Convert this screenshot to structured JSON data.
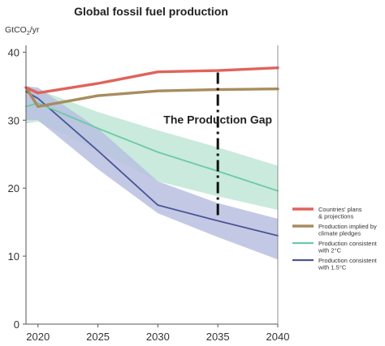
{
  "chart_data": {
    "type": "line",
    "title": "Global fossil fuel production",
    "ylabel_main": "GtCO",
    "ylabel_sub": "2",
    "ylabel_tail": "/yr",
    "xlabel": "",
    "xlim": [
      2019,
      2040
    ],
    "ylim": [
      0,
      41
    ],
    "x_ticks": [
      2020,
      2025,
      2030,
      2035,
      2040
    ],
    "y_ticks": [
      0,
      10,
      20,
      30,
      40
    ],
    "grid": false,
    "legend_position": "right",
    "series": [
      {
        "name": "Countries' plans & projections",
        "label_lines": [
          "Countries' plans",
          "& projections"
        ],
        "color": "#e0635c",
        "x": [
          2019,
          2020,
          2025,
          2030,
          2035,
          2040
        ],
        "y": [
          34.8,
          34.0,
          35.4,
          37.1,
          37.3,
          37.7
        ]
      },
      {
        "name": "Production implied by climate pledges",
        "label_lines": [
          "Production implied by",
          " climate pledges"
        ],
        "color": "#a88c5e",
        "x": [
          2019,
          2020,
          2025,
          2030,
          2035,
          2040
        ],
        "y": [
          34.8,
          32.0,
          33.6,
          34.3,
          34.5,
          34.6
        ]
      },
      {
        "name": "Production consistent with 2°C",
        "label_lines": [
          "Production consistent",
          "with 2°C"
        ],
        "color": "#6cc9a6",
        "band_color": "#bfe6d6",
        "x": [
          2019,
          2020,
          2025,
          2030,
          2035,
          2040
        ],
        "y": [
          32.0,
          32.5,
          28.8,
          25.3,
          22.5,
          19.6
        ],
        "band_upper": [
          34.8,
          34.5,
          31.2,
          28.5,
          26.0,
          23.3
        ],
        "band_lower": [
          29.5,
          29.8,
          25.5,
          21.0,
          18.8,
          16.8
        ]
      },
      {
        "name": "Production consistent with 1.5°C",
        "label_lines": [
          "Production consistent",
          "with 1.5°C"
        ],
        "color": "#4b5596",
        "band_color": "#b9c0e0",
        "x": [
          2019,
          2020,
          2025,
          2030,
          2035,
          2040
        ],
        "y": [
          34.2,
          33.2,
          25.5,
          17.5,
          15.2,
          13.0
        ],
        "band_upper": [
          35.0,
          34.8,
          28.8,
          21.0,
          17.8,
          15.5
        ],
        "band_lower": [
          30.0,
          30.0,
          22.8,
          16.3,
          12.8,
          9.5
        ]
      }
    ],
    "annotation": {
      "text": "The Production Gap",
      "x": 2035,
      "y_top": 37.0,
      "y_bottom": 15.5
    }
  }
}
